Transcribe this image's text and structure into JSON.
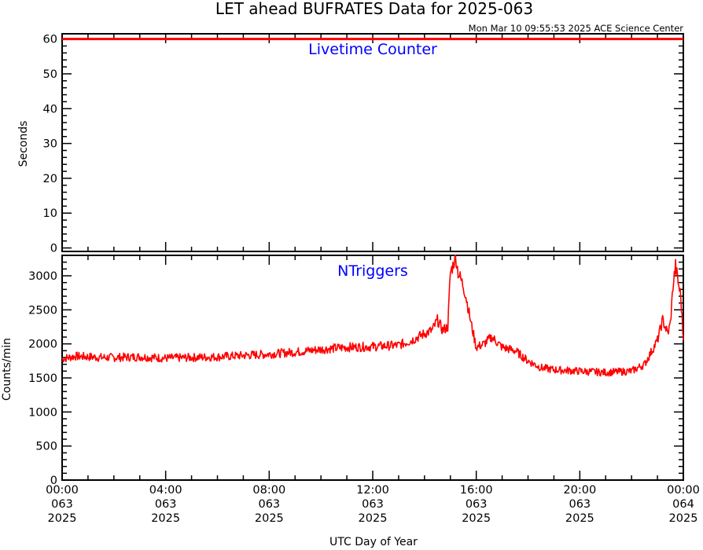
{
  "title": "LET ahead BUFRATES Data for 2025-063",
  "timestamp": "Mon Mar 10 09:55:53 2025 ACE Science Center",
  "colors": {
    "series": "#ff0000",
    "panel_label": "#0000ff",
    "axes": "#000000"
  },
  "chart_data": [
    {
      "type": "line",
      "panel_label": "Livetime Counter",
      "ylabel": "Seconds",
      "ylim": [
        -1,
        61.5
      ],
      "yticks": [
        0,
        10,
        20,
        30,
        40,
        50,
        60
      ],
      "xlim": [
        0,
        24
      ],
      "series": [
        {
          "color": "#ff0000",
          "x": [
            0,
            24
          ],
          "y": [
            60,
            60
          ]
        }
      ]
    },
    {
      "type": "line",
      "panel_label": "NTriggers",
      "ylabel": "Counts/min",
      "xlabel": "UTC Day of Year",
      "ylim": [
        0,
        3300
      ],
      "yticks": [
        0,
        500,
        1000,
        1500,
        2000,
        2500,
        3000
      ],
      "xlim": [
        0,
        24
      ],
      "series": [
        {
          "color": "#ff0000",
          "x": [
            0,
            0.5,
            1,
            1.5,
            2,
            3,
            4,
            5,
            6,
            7,
            8,
            9,
            10,
            11,
            12,
            13,
            13.5,
            14,
            14.3,
            14.5,
            14.7,
            14.9,
            15.0,
            15.1,
            15.2,
            15.3,
            15.4,
            15.5,
            15.6,
            15.8,
            16,
            16.3,
            16.6,
            17,
            17.5,
            18,
            18.5,
            19,
            20,
            21,
            22,
            22.5,
            23,
            23.2,
            23.4,
            23.5,
            23.6,
            23.7,
            23.8,
            23.9,
            24
          ],
          "y": [
            1780,
            1820,
            1810,
            1800,
            1800,
            1810,
            1790,
            1800,
            1810,
            1830,
            1850,
            1880,
            1920,
            1950,
            1960,
            1980,
            2050,
            2150,
            2200,
            2350,
            2200,
            2250,
            3050,
            3150,
            3300,
            3050,
            2950,
            2850,
            2700,
            2300,
            1950,
            2000,
            2100,
            1950,
            1900,
            1750,
            1650,
            1620,
            1600,
            1580,
            1600,
            1700,
            2050,
            2350,
            2150,
            2300,
            2850,
            3150,
            2900,
            2700,
            2050
          ]
        }
      ]
    }
  ],
  "x_ticks": [
    {
      "time": "00:00",
      "doy": "063",
      "year": "2025",
      "hour": 0
    },
    {
      "time": "04:00",
      "doy": "063",
      "year": "2025",
      "hour": 4
    },
    {
      "time": "08:00",
      "doy": "063",
      "year": "2025",
      "hour": 8
    },
    {
      "time": "12:00",
      "doy": "063",
      "year": "2025",
      "hour": 12
    },
    {
      "time": "16:00",
      "doy": "063",
      "year": "2025",
      "hour": 16
    },
    {
      "time": "20:00",
      "doy": "063",
      "year": "2025",
      "hour": 20
    },
    {
      "time": "00:00",
      "doy": "064",
      "year": "2025",
      "hour": 24
    }
  ]
}
